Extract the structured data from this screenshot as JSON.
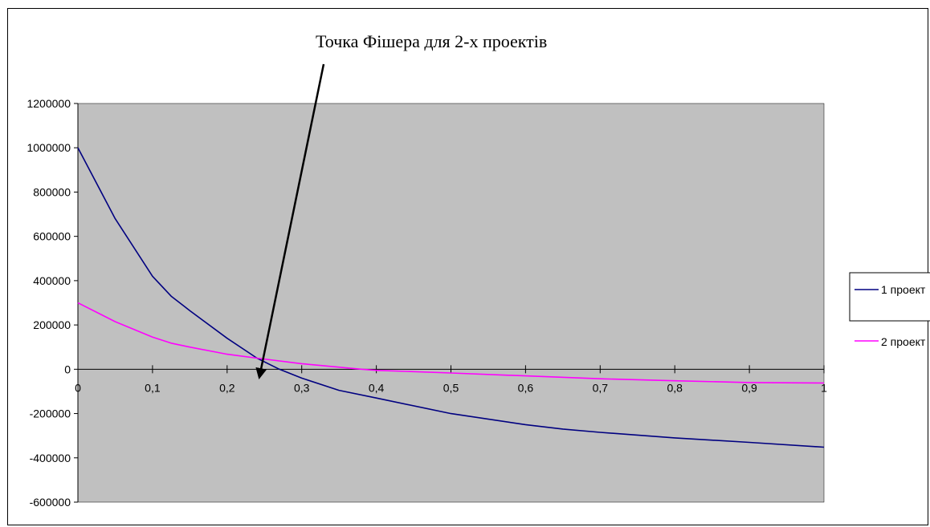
{
  "chart_data": {
    "type": "line",
    "title": "",
    "xlabel": "",
    "ylabel": "",
    "annotation": "Точка Фішера для 2-х проектів",
    "xlim": [
      0,
      1
    ],
    "ylim": [
      -600000,
      1200000
    ],
    "x_ticks": [
      "0",
      "0,1",
      "0,2",
      "0,3",
      "0,4",
      "0,5",
      "0,6",
      "0,7",
      "0,8",
      "0,9",
      "1"
    ],
    "y_ticks": [
      "1200000",
      "1000000",
      "800000",
      "600000",
      "400000",
      "200000",
      "0",
      "-200000",
      "-400000",
      "-600000"
    ],
    "plot_background": "#c0c0c0",
    "grid": false,
    "legend_position": "right",
    "series": [
      {
        "name": "1 проект",
        "color": "#000080",
        "x": [
          0,
          0.05,
          0.1,
          0.125,
          0.15,
          0.2,
          0.24,
          0.27,
          0.3,
          0.35,
          0.4,
          0.5,
          0.6,
          0.65,
          0.7,
          0.8,
          0.9,
          1.0
        ],
        "y": [
          1000000,
          680000,
          420000,
          330000,
          265000,
          140000,
          50000,
          0,
          -40000,
          -95000,
          -130000,
          -200000,
          -250000,
          -270000,
          -285000,
          -310000,
          -330000,
          -352000
        ]
      },
      {
        "name": "2 проект",
        "color": "#ff00ff",
        "x": [
          0,
          0.05,
          0.1,
          0.125,
          0.15,
          0.2,
          0.24,
          0.3,
          0.38,
          0.4,
          0.5,
          0.6,
          0.7,
          0.8,
          0.9,
          1.0
        ],
        "y": [
          300000,
          215000,
          145000,
          118000,
          100000,
          68000,
          50000,
          25000,
          0,
          -5000,
          -17000,
          -30000,
          -43000,
          -52000,
          -60000,
          -62000
        ]
      }
    ]
  }
}
